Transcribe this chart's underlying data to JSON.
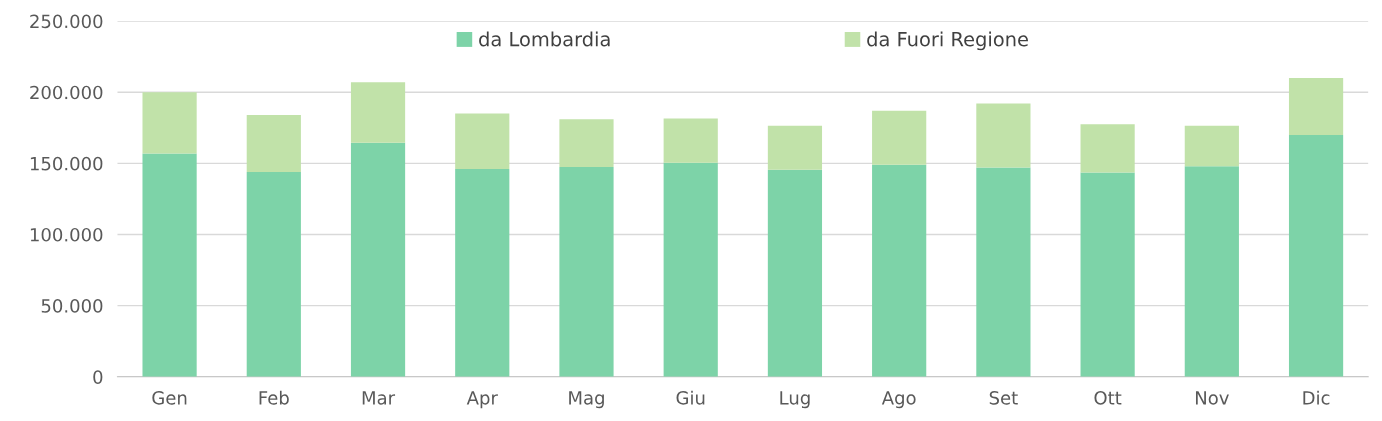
{
  "chart_data": {
    "type": "bar",
    "stacked": true,
    "categories": [
      "Gen",
      "Feb",
      "Mar",
      "Apr",
      "Mag",
      "Giu",
      "Lug",
      "Ago",
      "Set",
      "Ott",
      "Nov",
      "Dic"
    ],
    "series": [
      {
        "name": "da Lombardia",
        "color": "#7dd3a8",
        "values": [
          157000,
          144000,
          164500,
          146000,
          147500,
          150500,
          145500,
          149000,
          147000,
          143500,
          148000,
          170000
        ]
      },
      {
        "name": "da Fuori Regione",
        "color": "#c1e2a9",
        "values": [
          43000,
          40000,
          42500,
          39000,
          33500,
          31000,
          31000,
          38000,
          45000,
          34000,
          28500,
          40000
        ]
      }
    ],
    "ylim": [
      0,
      250000
    ],
    "yticks": [
      0,
      {
        "value": 50000,
        "label": "50.000"
      },
      {
        "value": 100000,
        "label": "100.000"
      },
      {
        "value": 150000,
        "label": "150.000"
      },
      {
        "value": 200000,
        "label": "200.000"
      },
      {
        "value": 250000,
        "label": "250.000"
      }
    ],
    "grid": "y",
    "legend": "top"
  }
}
